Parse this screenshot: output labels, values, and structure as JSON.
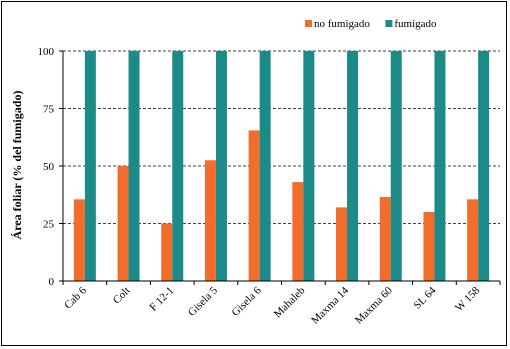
{
  "chart_data": {
    "type": "bar",
    "title": "",
    "xlabel": "",
    "ylabel": "Área foliar (% del fumigado)",
    "ylim": [
      0,
      100
    ],
    "yticks": [
      0,
      25,
      50,
      75,
      100
    ],
    "grid": "horizontal dashed",
    "legend_position": "top-right",
    "categories": [
      "Cab 6",
      "Colt",
      "F 12-1",
      "Gisela 5",
      "Gisela 6",
      "Mahaleb",
      "Maxma 14",
      "Maxma 60",
      "SL 64",
      "W 158"
    ],
    "series": [
      {
        "name": "no fumigado",
        "color": "#f26c2c",
        "values": [
          35.5,
          50,
          25,
          52.5,
          65.5,
          43,
          32,
          36.5,
          30,
          35.5
        ]
      },
      {
        "name": "fumigado",
        "color": "#1c8b87",
        "values": [
          100,
          100,
          100,
          100,
          100,
          100,
          100,
          100,
          100,
          100
        ]
      }
    ]
  }
}
